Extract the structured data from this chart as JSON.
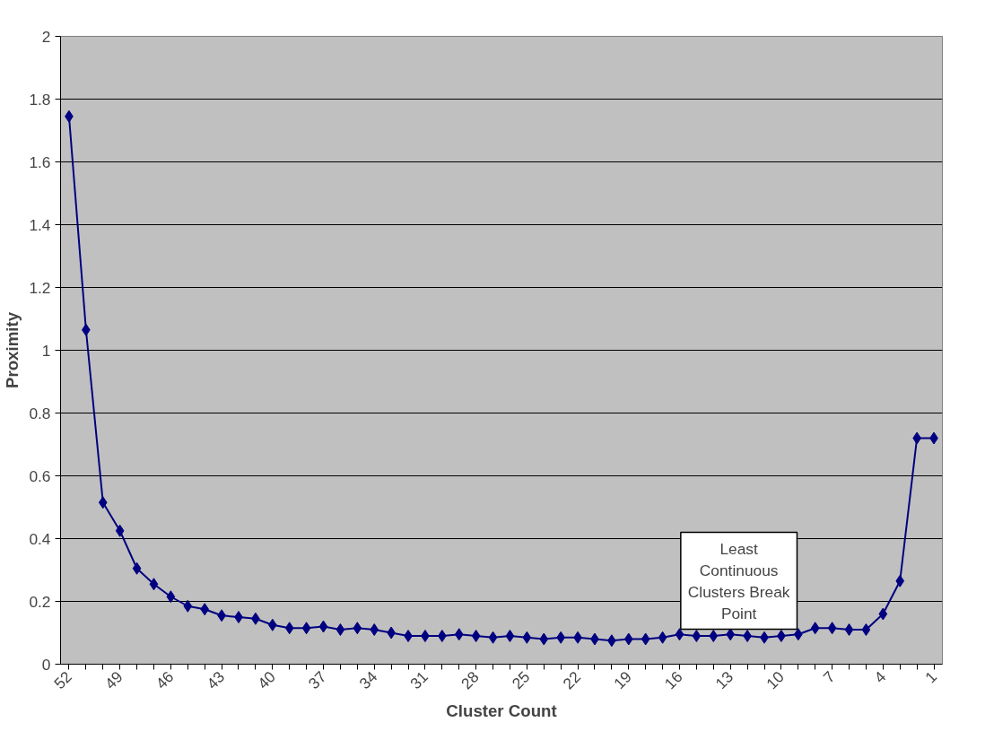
{
  "chart_data": {
    "type": "line",
    "xlabel": "Cluster Count",
    "ylabel": "Proximity",
    "categories": [
      "52",
      null,
      null,
      "49",
      null,
      null,
      "46",
      null,
      null,
      "43",
      null,
      null,
      "40",
      null,
      null,
      "37",
      null,
      null,
      "34",
      null,
      null,
      "31",
      null,
      null,
      "28",
      null,
      null,
      "25",
      null,
      null,
      "22",
      null,
      null,
      "19",
      null,
      null,
      "16",
      null,
      null,
      "13",
      null,
      null,
      "10",
      null,
      null,
      "7",
      null,
      null,
      "4",
      null,
      null,
      "1"
    ],
    "series": [
      {
        "color": "#000080",
        "values": [
          1.745,
          1.065,
          0.515,
          0.425,
          0.305,
          0.255,
          0.215,
          0.185,
          0.175,
          0.155,
          0.15,
          0.145,
          0.125,
          0.115,
          0.115,
          0.12,
          0.11,
          0.115,
          0.11,
          0.1,
          0.09,
          0.09,
          0.09,
          0.095,
          0.09,
          0.085,
          0.09,
          0.085,
          0.08,
          0.085,
          0.085,
          0.08,
          0.075,
          0.08,
          0.08,
          0.085,
          0.095,
          0.09,
          0.09,
          0.095,
          0.09,
          0.085,
          0.09,
          0.095,
          0.115,
          0.115,
          0.11,
          0.11,
          0.16,
          0.265,
          0.72,
          0.72
        ]
      }
    ],
    "ylim": [
      0,
      2
    ],
    "yticks": [
      0,
      0.2,
      0.4,
      0.6,
      0.8,
      1,
      1.2,
      1.4,
      1.6,
      1.8,
      2
    ],
    "grid": "y",
    "marker": "diamond",
    "line_style": "solid",
    "annotations": [
      "Least\nContinuous\nClusters Break\nPoint"
    ]
  }
}
